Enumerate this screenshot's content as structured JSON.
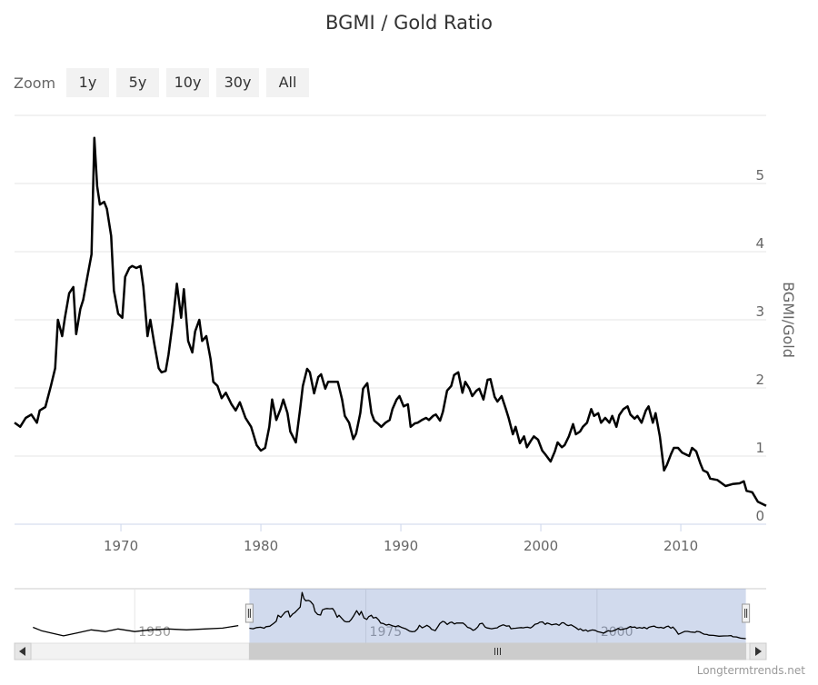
{
  "chart_data": {
    "type": "line",
    "title": "BGMI / Gold Ratio",
    "y_label": "BGMI/Gold",
    "zoom_label": "Zoom",
    "zoom_buttons": [
      "1y",
      "5y",
      "10y",
      "30y",
      "All"
    ],
    "credit": "Longtermtrends.net",
    "color": "#000000",
    "grid": true,
    "x": [
      1962.4,
      1962.8,
      1963.2,
      1963.6,
      1964.0,
      1964.2,
      1964.6,
      1965.0,
      1965.3,
      1965.5,
      1965.8,
      1966.0,
      1966.3,
      1966.6,
      1966.8,
      1967.1,
      1967.3,
      1967.6,
      1967.9,
      1968.1,
      1968.3,
      1968.5,
      1968.8,
      1969.0,
      1969.3,
      1969.5,
      1969.8,
      1970.1,
      1970.3,
      1970.6,
      1970.8,
      1971.1,
      1971.4,
      1971.6,
      1971.9,
      1972.1,
      1972.4,
      1972.7,
      1972.9,
      1973.2,
      1973.4,
      1973.7,
      1974.0,
      1974.3,
      1974.5,
      1974.8,
      1975.1,
      1975.3,
      1975.6,
      1975.8,
      1976.1,
      1976.4,
      1976.6,
      1976.9,
      1977.2,
      1977.5,
      1977.9,
      1978.2,
      1978.5,
      1978.9,
      1979.3,
      1979.7,
      1980.0,
      1980.3,
      1980.6,
      1980.8,
      1981.1,
      1981.4,
      1981.6,
      1981.9,
      1982.1,
      1982.5,
      1982.8,
      1983.0,
      1983.3,
      1983.5,
      1983.8,
      1984.1,
      1984.3,
      1984.6,
      1984.8,
      1985.1,
      1985.5,
      1985.8,
      1986.0,
      1986.3,
      1986.6,
      1986.8,
      1987.1,
      1987.3,
      1987.6,
      1987.9,
      1988.1,
      1988.4,
      1988.6,
      1988.9,
      1989.2,
      1989.4,
      1989.7,
      1989.9,
      1990.2,
      1990.5,
      1990.7,
      1991.0,
      1991.2,
      1991.5,
      1991.8,
      1992.0,
      1992.3,
      1992.5,
      1992.8,
      1993.0,
      1993.3,
      1993.6,
      1993.8,
      1994.1,
      1994.4,
      1994.6,
      1994.9,
      1995.1,
      1995.4,
      1995.6,
      1995.9,
      1996.2,
      1996.4,
      1996.7,
      1996.9,
      1997.2,
      1997.5,
      1997.7,
      1998.0,
      1998.2,
      1998.5,
      1998.8,
      1999.0,
      1999.3,
      1999.5,
      1999.8,
      2000.1,
      2000.3,
      2000.7,
      2001.0,
      2001.2,
      2001.5,
      2001.7,
      2002.0,
      2002.3,
      2002.5,
      2002.8,
      2003.0,
      2003.3,
      2003.6,
      2003.8,
      2004.1,
      2004.3,
      2004.6,
      2004.9,
      2005.1,
      2005.4,
      2005.6,
      2005.9,
      2006.2,
      2006.4,
      2006.7,
      2006.9,
      2007.2,
      2007.5,
      2007.7,
      2008.0,
      2008.2,
      2008.5,
      2008.8,
      2009.0,
      2009.3,
      2009.5,
      2009.8,
      2010.1,
      2010.3,
      2010.6,
      2010.8,
      2011.1,
      2011.4,
      2011.6,
      2011.9,
      2012.1,
      2012.6,
      2013.2,
      2013.7,
      2014.2,
      2014.5,
      2014.7,
      2015.1,
      2015.5,
      2016.1
    ],
    "values": [
      1.49,
      1.43,
      1.56,
      1.61,
      1.49,
      1.67,
      1.72,
      2.03,
      2.29,
      3.0,
      2.76,
      3.03,
      3.39,
      3.48,
      2.79,
      3.16,
      3.29,
      3.63,
      3.96,
      5.67,
      4.96,
      4.69,
      4.73,
      4.63,
      4.23,
      3.43,
      3.09,
      3.03,
      3.63,
      3.76,
      3.79,
      3.76,
      3.79,
      3.49,
      2.76,
      3.0,
      2.63,
      2.29,
      2.23,
      2.25,
      2.49,
      2.96,
      3.53,
      3.03,
      3.45,
      2.69,
      2.52,
      2.83,
      3.0,
      2.69,
      2.76,
      2.43,
      2.09,
      2.03,
      1.85,
      1.93,
      1.76,
      1.67,
      1.79,
      1.56,
      1.43,
      1.16,
      1.08,
      1.12,
      1.43,
      1.83,
      1.53,
      1.69,
      1.83,
      1.63,
      1.36,
      1.2,
      1.69,
      2.03,
      2.28,
      2.23,
      1.92,
      2.16,
      2.2,
      1.99,
      2.09,
      2.09,
      2.09,
      1.83,
      1.59,
      1.49,
      1.25,
      1.33,
      1.63,
      1.99,
      2.07,
      1.63,
      1.52,
      1.47,
      1.43,
      1.49,
      1.53,
      1.69,
      1.83,
      1.88,
      1.73,
      1.76,
      1.43,
      1.48,
      1.49,
      1.53,
      1.56,
      1.53,
      1.59,
      1.61,
      1.52,
      1.65,
      1.96,
      2.03,
      2.19,
      2.23,
      1.93,
      2.09,
      1.99,
      1.88,
      1.96,
      1.99,
      1.83,
      2.12,
      2.13,
      1.87,
      1.8,
      1.88,
      1.69,
      1.56,
      1.32,
      1.43,
      1.19,
      1.29,
      1.13,
      1.23,
      1.29,
      1.24,
      1.08,
      1.03,
      0.92,
      1.07,
      1.2,
      1.13,
      1.16,
      1.29,
      1.47,
      1.32,
      1.36,
      1.43,
      1.49,
      1.69,
      1.59,
      1.63,
      1.49,
      1.56,
      1.49,
      1.59,
      1.43,
      1.6,
      1.69,
      1.73,
      1.61,
      1.55,
      1.59,
      1.49,
      1.67,
      1.73,
      1.49,
      1.63,
      1.29,
      0.79,
      0.87,
      1.03,
      1.12,
      1.12,
      1.05,
      1.03,
      1.0,
      1.12,
      1.07,
      0.89,
      0.79,
      0.76,
      0.67,
      0.65,
      0.56,
      0.59,
      0.6,
      0.63,
      0.49,
      0.47,
      0.33,
      0.27
    ],
    "xlim": [
      1962.4,
      2016.1
    ],
    "xticks": [
      1970,
      1980,
      1990,
      2000,
      2010
    ],
    "ylim": [
      0,
      6
    ],
    "yticks": [
      0,
      1,
      2,
      3,
      4,
      5
    ],
    "navigator": {
      "x": [
        1939.0,
        1939.9,
        1940.9,
        1942.3,
        1943.8,
        1945.3,
        1946.8,
        1948.2,
        1950.0,
        1951.7,
        1953.6,
        1955.6,
        1957.6,
        1959.5,
        1961.2
      ],
      "values": [
        1.6,
        1.2,
        0.95,
        0.6,
        0.95,
        1.3,
        1.1,
        1.4,
        1.1,
        1.3,
        1.4,
        1.3,
        1.4,
        1.5,
        1.8
      ],
      "xlim": [
        1937,
        2018.3
      ],
      "xticks": [
        1950,
        1975,
        2000
      ],
      "ylim": [
        -0.26,
        6.1
      ]
    }
  }
}
